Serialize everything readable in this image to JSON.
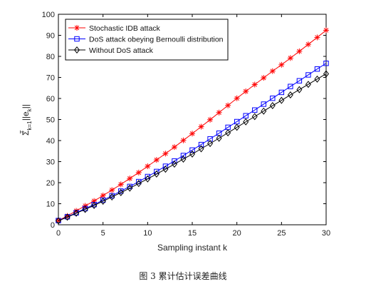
{
  "chart_data": {
    "type": "line",
    "title": "",
    "xlabel": "Sampling instant k",
    "ylabel": {
      "base": "Σ",
      "sub": "k=1",
      "sup": "T",
      "rest": " ||e",
      "rest_sub": "k",
      "tail": "||"
    },
    "xlim": [
      0,
      30
    ],
    "ylim": [
      0,
      100
    ],
    "xticks": [
      "0",
      "5",
      "10",
      "15",
      "20",
      "25",
      "30"
    ],
    "yticks": [
      "0",
      "10",
      "20",
      "30",
      "40",
      "50",
      "60",
      "70",
      "80",
      "90",
      "100"
    ],
    "grid": false,
    "legend_position": "top-left",
    "x": [
      0,
      1,
      2,
      3,
      4,
      5,
      6,
      7,
      8,
      9,
      10,
      11,
      12,
      13,
      14,
      15,
      16,
      17,
      18,
      19,
      20,
      21,
      22,
      23,
      24,
      25,
      26,
      27,
      28,
      29,
      30
    ],
    "series": [
      {
        "name": "Stochastic IDB attack",
        "color": "#ff0000",
        "marker": "asterisk",
        "values": [
          2.0,
          4.2,
          6.6,
          9.0,
          11.3,
          13.9,
          16.5,
          19.2,
          22.0,
          24.8,
          27.8,
          30.8,
          33.8,
          36.9,
          40.1,
          43.3,
          46.6,
          49.9,
          53.3,
          56.7,
          60.1,
          63.4,
          66.6,
          69.8,
          73.0,
          76.0,
          79.2,
          82.4,
          85.7,
          89.0,
          92.4
        ]
      },
      {
        "name": "DoS attack obeying Bernoulli distribution",
        "color": "#0000ff",
        "marker": "square",
        "values": [
          2.0,
          3.8,
          5.7,
          7.7,
          9.6,
          11.7,
          13.8,
          16.0,
          18.2,
          20.5,
          22.9,
          25.3,
          27.8,
          30.3,
          32.9,
          35.5,
          38.1,
          40.8,
          43.5,
          46.3,
          49.0,
          51.8,
          54.5,
          57.3,
          60.1,
          62.9,
          65.7,
          68.4,
          71.2,
          74.0,
          76.7
        ]
      },
      {
        "name": "Without DoS attack",
        "color": "#000000",
        "marker": "diamond",
        "values": [
          1.9,
          3.6,
          5.5,
          7.3,
          9.2,
          11.2,
          13.2,
          15.3,
          17.4,
          19.6,
          21.8,
          24.1,
          26.4,
          28.8,
          31.2,
          33.6,
          36.1,
          38.6,
          41.1,
          43.7,
          46.3,
          48.9,
          51.4,
          54.0,
          56.6,
          59.1,
          61.7,
          64.2,
          66.7,
          69.2,
          71.7
        ]
      }
    ]
  },
  "caption": "图 3  累计估计误差曲线"
}
